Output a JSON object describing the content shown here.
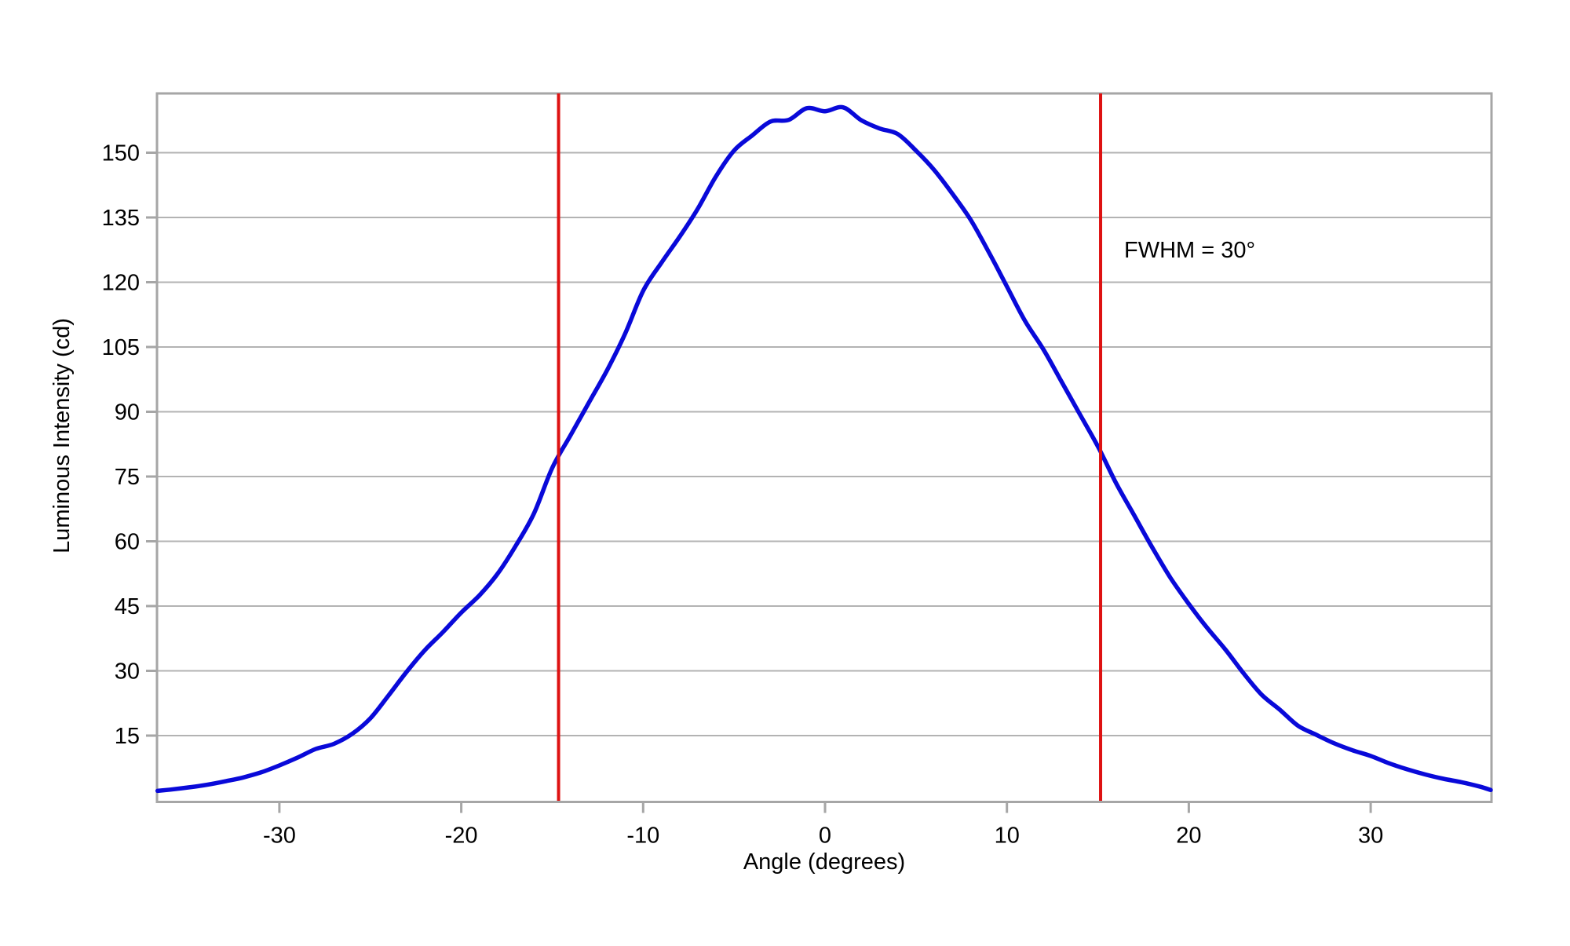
{
  "axes": {
    "x": {
      "label": "Angle (degrees)",
      "ticks": [
        -30,
        -20,
        -10,
        0,
        10,
        20,
        30
      ],
      "range": [
        -36.7,
        36.6
      ]
    },
    "y": {
      "label": "Luminous Intensity (cd)",
      "ticks": [
        15,
        30,
        45,
        60,
        75,
        90,
        105,
        120,
        135,
        150
      ],
      "range": [
        0,
        164.5
      ]
    }
  },
  "annotation": {
    "fwhm_label": "FWHM = 30°",
    "fwhm_lines_deg": [
      -14.65,
      15.15
    ]
  },
  "colors": {
    "curve": "#0909d9",
    "fwhm_line": "#de1212",
    "grid": "#b3b3b3",
    "frame": "#a6a6a6",
    "text": "#000000",
    "background": "#ffffff"
  },
  "chart_data": {
    "type": "line",
    "title": "",
    "xlabel": "Angle (degrees)",
    "ylabel": "Luminous Intensity (cd)",
    "xlim": [
      -36.7,
      36.6
    ],
    "ylim": [
      0,
      164.5
    ],
    "grid": "horizontal",
    "legend": "none",
    "series": [
      {
        "name": "luminous-intensity",
        "x": [
          -36.7,
          -36,
          -35,
          -34,
          -33,
          -32,
          -31,
          -30,
          -29,
          -28,
          -27,
          -26,
          -25,
          -24,
          -23,
          -22,
          -21,
          -20,
          -19,
          -18,
          -17,
          -16,
          -15,
          -14,
          -13,
          -12,
          -11,
          -10,
          -9,
          -8,
          -7,
          -6,
          -5,
          -4,
          -3,
          -2,
          -1,
          0,
          1,
          2,
          3,
          4,
          5,
          6,
          7,
          8,
          9,
          10,
          11,
          12,
          13,
          14,
          15,
          16,
          17,
          18,
          19,
          20,
          21,
          22,
          23,
          24,
          25,
          26,
          27,
          28,
          29,
          30,
          31,
          32,
          33,
          34,
          35,
          36,
          36.6
        ],
        "y": [
          2.2,
          2.5,
          3.0,
          3.6,
          4.4,
          5.3,
          6.5,
          8.1,
          9.9,
          11.9,
          13.1,
          15.4,
          19.0,
          24.3,
          29.8,
          34.8,
          39.0,
          43.5,
          47.5,
          52.5,
          59.0,
          66.5,
          77.0,
          84.5,
          92.0,
          99.5,
          108.0,
          118.0,
          124.5,
          130.5,
          137.0,
          144.5,
          150.5,
          154.0,
          157.2,
          157.6,
          160.3,
          159.6,
          160.5,
          157.5,
          155.6,
          154.3,
          150.5,
          146.0,
          140.5,
          134.5,
          127.0,
          119.0,
          111.0,
          104.5,
          97.0,
          89.5,
          82.0,
          73.5,
          66.0,
          58.5,
          51.5,
          45.5,
          40.0,
          35.0,
          29.5,
          24.5,
          21.0,
          17.3,
          15.2,
          13.2,
          11.6,
          10.3,
          8.6,
          7.2,
          6.0,
          5.0,
          4.2,
          3.2,
          2.4
        ]
      }
    ],
    "annotations": [
      {
        "text": "FWHM = 30°",
        "x_deg": 16.4,
        "y_cd": 126
      }
    ],
    "vlines_deg": [
      -14.65,
      15.15
    ]
  }
}
